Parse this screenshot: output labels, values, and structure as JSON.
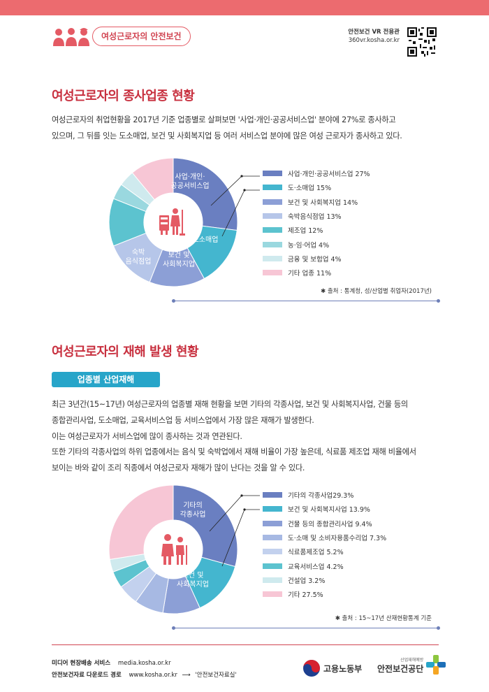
{
  "header": {
    "title_pill": "여성근로자의 안전보건",
    "vr_label": "안전보건 VR 전용관",
    "vr_url": "360vr.kosha.or.kr"
  },
  "section1": {
    "title": "여성근로자의 종사업종 현황",
    "para": [
      "여성근로자의 취업현황을 2017년 기준 업종별로 살펴보면 '사업·개인·공공서비스업' 분야에 27%로 종사하고",
      "있으며, 그 뒤를 잇는 도소매업, 보건 및 사회복지업 등 여러 서비스업 분야에 많은 여성 근로자가 종사하고 있다."
    ],
    "source": "✱ 출처 : 통계청, 성/산업별 취업자(2017년)"
  },
  "section2": {
    "title": "여성근로자의 재해 발생 현황",
    "tag": "업종별 산업재해",
    "para": [
      "최근 3년간(15~17년) 여성근로자의 업종별 재해 현황을 보면 기타의 각종사업, 보건 및 사회복지사업, 건물 등의",
      "종합관리사업, 도소매업, 교육서비스업 등 서비스업에서 가장 많은 재해가 발생한다.",
      "이는 여성근로자가 서비스업에 많이 종사하는 것과 연관된다.",
      "또한 기타의 각종사업의 하위 업종에서는 음식 및 숙박업에서 재해 비율이 가장 높은데, 식료품 제조업 재해 비율에서",
      "보이는 바와 같이 조리 직종에서 여성근로자 재해가 많이 난다는 것을 알 수 있다."
    ],
    "source": "✱ 출처 : 15~17년 산재현황통계 기준"
  },
  "chart_data": [
    {
      "type": "pie",
      "categories": [
        "사업·개인·공공서비스업",
        "도·소매업",
        "보건 및 사회복지업",
        "숙박음식점업",
        "제조업",
        "농·임·어업",
        "금융 및 보험업",
        "기타 업종"
      ],
      "values": [
        27,
        15,
        14,
        13,
        12,
        4,
        4,
        11
      ],
      "legend": [
        "사업·개인·공공서비스업 27%",
        "도·소매업 15%",
        "보건 및 사회복지업 14%",
        "숙박음식점업 13%",
        "제조업 12%",
        "농·임·어업 4%",
        "금융 및 보험업 4%",
        "기타 업종 11%"
      ],
      "slice_labels": [
        [
          "사업·개인·",
          "공공서비스업"
        ],
        [
          "도소매업"
        ],
        [
          "보건 및",
          "사회복지업"
        ],
        [
          "숙박",
          "음식점업"
        ],
        [],
        [],
        [],
        []
      ],
      "colors": [
        "#6a7fc1",
        "#44b6cf",
        "#8c9fd6",
        "#b6c6e9",
        "#5cc3cf",
        "#9ad8df",
        "#cfeaee",
        "#f7c6d5"
      ],
      "legend_placement": "right",
      "type_shape": "donut"
    },
    {
      "type": "pie",
      "categories": [
        "기타의 각종사업",
        "보건 및 사회복지사업",
        "건물 등의 종합관리사업",
        "도·소매 및 소비자용품수리업",
        "식료품제조업",
        "교육서비스업",
        "건설업",
        "기타"
      ],
      "values": [
        29.3,
        13.9,
        9.4,
        7.3,
        5.2,
        4.2,
        3.2,
        27.5
      ],
      "legend": [
        "기타의 각종사업29.3%",
        "보건 및 사회복지사업 13.9%",
        "건물 등의 종합관리사업 9.4%",
        "도·소매 및 소비자용품수리업 7.3%",
        "식료품제조업 5.2%",
        "교육서비스업 4.2%",
        "건설업 3.2%",
        "기타 27.5%"
      ],
      "slice_labels": [
        [
          "기타의",
          "각종사업"
        ],
        [
          "보건 및",
          "사회복지업"
        ],
        [],
        [],
        [],
        [],
        [],
        []
      ],
      "colors": [
        "#6a7fc1",
        "#44b6cf",
        "#8c9fd6",
        "#a7b9e3",
        "#c3d1ee",
        "#5cc3cf",
        "#cfeaee",
        "#f7c6d5"
      ],
      "legend_placement": "right",
      "type_shape": "donut"
    }
  ],
  "footer": {
    "media_label": "미디어 현장배송 서비스",
    "media_url": "media.kosha.or.kr",
    "download_label": "안전보건자료 다운로드 경로",
    "download_url": "www.kosha.or.kr",
    "download_target": "'안전보건자료실'",
    "moel": "고용노동부",
    "kosha_small": "산업재해예방",
    "kosha": "안전보건공단"
  }
}
